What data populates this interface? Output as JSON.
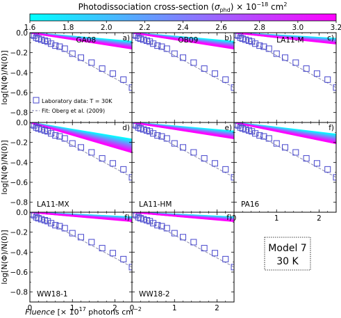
{
  "colorbar": {
    "title_text": "Photodissociation cross-section (",
    "title_symbol": "σ",
    "title_subscript": "phd",
    "title_tail": ") × 10",
    "title_exponent": "−18",
    "title_units": " cm",
    "title_units_exp": "2",
    "ticks": [
      "1.6",
      "1.8",
      "2.0",
      "2.2",
      "2.4",
      "2.6",
      "2.8",
      "3.0",
      "3.2"
    ],
    "range": [
      1.6,
      3.2
    ],
    "colors": [
      "#00ffff",
      "#ff00ff"
    ]
  },
  "axes": {
    "ylabel": "log[N(Φ)/N(0)]",
    "xlabel_italic": "Fluence",
    "xlabel_rest": " [× 10",
    "xlabel_exp": "17",
    "xlabel_units": " photons cm",
    "xlabel_units_exp": "−2",
    "ylim": [
      -0.9,
      0.0
    ],
    "xlim": [
      0,
      2.4
    ],
    "yticks": [
      "0.0",
      "−0.2",
      "−0.4",
      "−0.6",
      "−0.8"
    ],
    "xticks": [
      "0",
      "1",
      "2"
    ]
  },
  "legend": {
    "data_label": "Laboratory data: T = 30K",
    "fit_label": "Fit: Oberg et al. (2009)"
  },
  "model_box": {
    "line1": "Model 7",
    "line2": "30 K"
  },
  "chart_data": {
    "type": "scatter",
    "lab_data": {
      "x": [
        0.05,
        0.1,
        0.15,
        0.2,
        0.27,
        0.35,
        0.42,
        0.5,
        0.6,
        0.7,
        0.82,
        1.0,
        1.2,
        1.45,
        1.7,
        1.95,
        2.2,
        2.4
      ],
      "y": [
        -0.02,
        -0.03,
        -0.05,
        -0.06,
        -0.07,
        -0.08,
        -0.09,
        -0.11,
        -0.13,
        -0.14,
        -0.16,
        -0.21,
        -0.25,
        -0.3,
        -0.36,
        -0.41,
        -0.47,
        -0.55
      ]
    },
    "fit_line": {
      "x": [
        0,
        2.4
      ],
      "y": [
        0.0,
        -0.55
      ]
    },
    "panels": [
      {
        "label": "GA08",
        "tag": "a)",
        "band_end": [
          -0.09,
          -0.16
        ]
      },
      {
        "label": "OB09",
        "tag": "b)",
        "band_end": [
          -0.09,
          -0.16
        ]
      },
      {
        "label": "LA11-M",
        "tag": "c)",
        "band_end": [
          -0.06,
          -0.11
        ]
      },
      {
        "label": "LA11-MX",
        "tag": "d)",
        "band_end": [
          -0.17,
          -0.3
        ]
      },
      {
        "label": "LA11-HM",
        "tag": "e)",
        "band_end": [
          -0.09,
          -0.16
        ]
      },
      {
        "label": "PA16",
        "tag": "f)",
        "band_end": [
          -0.12,
          -0.21
        ]
      },
      {
        "label": "WW18-1",
        "tag": "f)",
        "band_end": [
          -0.05,
          -0.09
        ]
      },
      {
        "label": "WW18-2",
        "tag": "f)",
        "band_end": [
          -0.05,
          -0.09
        ]
      }
    ]
  }
}
